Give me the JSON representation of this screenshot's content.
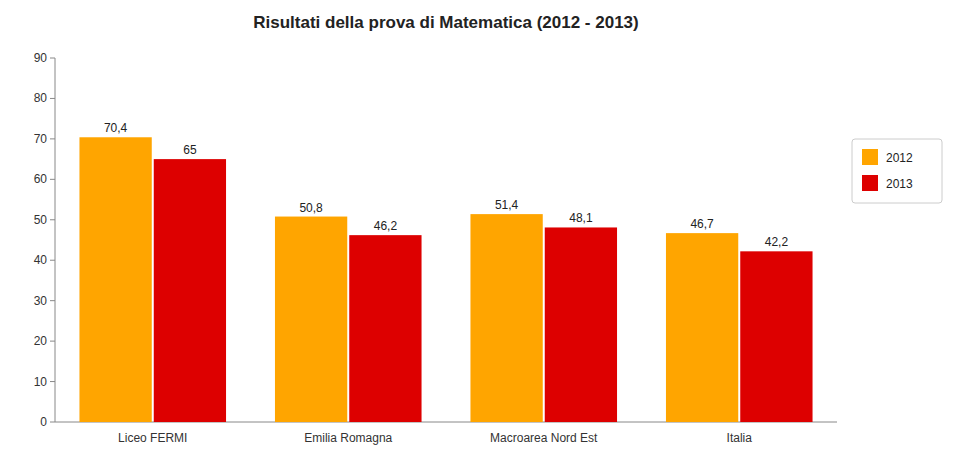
{
  "chart_data": {
    "type": "bar",
    "title": "Risultati della prova di Matematica (2012 - 2013)",
    "categories": [
      "Liceo FERMI",
      "Emilia Romagna",
      "Macroarea Nord Est",
      "Italia"
    ],
    "series": [
      {
        "name": "2012",
        "color": "#FFA500",
        "values": [
          70.4,
          50.8,
          51.4,
          46.7
        ],
        "value_labels": [
          "70,4",
          "50,8",
          "51,4",
          "46,7"
        ]
      },
      {
        "name": "2013",
        "color": "#DD0000",
        "values": [
          65.0,
          46.2,
          48.1,
          42.2
        ],
        "value_labels": [
          "65",
          "46,2",
          "48,1",
          "42,2"
        ]
      }
    ],
    "ylim": [
      0,
      90
    ],
    "yticks": [
      0,
      10,
      20,
      30,
      40,
      50,
      60,
      70,
      80,
      90
    ],
    "grid": false,
    "legend": "right",
    "data_labels": true
  }
}
